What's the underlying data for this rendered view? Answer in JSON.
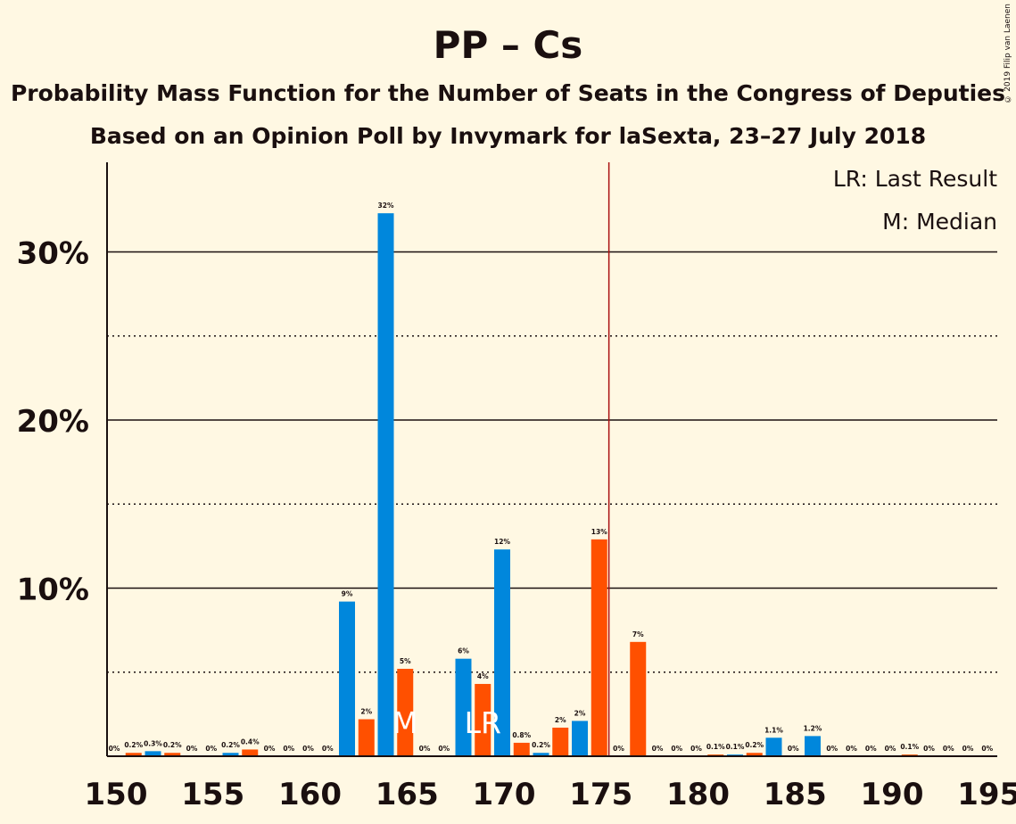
{
  "title": "PP – Cs",
  "subtitle": "Probability Mass Function for the Number of Seats in the Congress of Deputies",
  "subtitle2": "Based on an Opinion Poll by Invymark for laSexta, 23–27 July 2018",
  "copyright": "© 2019 Filip van Laenen",
  "legend": {
    "last_result": "LR: Last Result",
    "median": "M: Median"
  },
  "colors": {
    "series_blue": "#0087dc",
    "series_orange": "#ff5000",
    "majority_line": "#aa1111",
    "background": "#fff8e3"
  },
  "chart_data": {
    "type": "bar",
    "xlim": [
      150,
      195
    ],
    "ylim": [
      0,
      35
    ],
    "y_ticks": [
      {
        "value": 10,
        "label": "10%"
      },
      {
        "value": 20,
        "label": "20%"
      },
      {
        "value": 30,
        "label": "30%"
      }
    ],
    "y_dotted": [
      5,
      15,
      25
    ],
    "x_ticks": [
      {
        "value": 150,
        "label": "150"
      },
      {
        "value": 155,
        "label": "155"
      },
      {
        "value": 160,
        "label": "160"
      },
      {
        "value": 165,
        "label": "165"
      },
      {
        "value": 170,
        "label": "170"
      },
      {
        "value": 175,
        "label": "175"
      },
      {
        "value": 180,
        "label": "180"
      },
      {
        "value": 185,
        "label": "185"
      },
      {
        "value": 190,
        "label": "190"
      },
      {
        "value": 195,
        "label": "195"
      }
    ],
    "majority_line_x": 176,
    "bars": [
      {
        "x": 150,
        "value": 0,
        "label": "0%"
      },
      {
        "x": 151,
        "value": 0.2,
        "label": "0.2%"
      },
      {
        "x": 152,
        "value": 0.3,
        "label": "0.3%"
      },
      {
        "x": 153,
        "value": 0.2,
        "label": "0.2%"
      },
      {
        "x": 154,
        "value": 0,
        "label": "0%"
      },
      {
        "x": 155,
        "value": 0,
        "label": "0%"
      },
      {
        "x": 156,
        "value": 0.2,
        "label": "0.2%"
      },
      {
        "x": 157,
        "value": 0.4,
        "label": "0.4%"
      },
      {
        "x": 158,
        "value": 0,
        "label": "0%"
      },
      {
        "x": 159,
        "value": 0,
        "label": "0%"
      },
      {
        "x": 160,
        "value": 0,
        "label": "0%"
      },
      {
        "x": 161,
        "value": 0,
        "label": "0%"
      },
      {
        "x": 162,
        "value": 9.2,
        "label": "9%"
      },
      {
        "x": 163,
        "value": 2.2,
        "label": "2%"
      },
      {
        "x": 164,
        "value": 32.3,
        "label": "32%"
      },
      {
        "x": 165,
        "value": 5.2,
        "label": "5%"
      },
      {
        "x": 166,
        "value": 0,
        "label": "0%"
      },
      {
        "x": 167,
        "value": 0,
        "label": "0%"
      },
      {
        "x": 168,
        "value": 5.8,
        "label": "6%"
      },
      {
        "x": 169,
        "value": 4.3,
        "label": "4%"
      },
      {
        "x": 170,
        "value": 12.3,
        "label": "12%"
      },
      {
        "x": 171,
        "value": 0.8,
        "label": "0.8%"
      },
      {
        "x": 172,
        "value": 0.2,
        "label": "0.2%"
      },
      {
        "x": 173,
        "value": 1.7,
        "label": "2%"
      },
      {
        "x": 174,
        "value": 2.1,
        "label": "2%"
      },
      {
        "x": 175,
        "value": 12.9,
        "label": "13%"
      },
      {
        "x": 176,
        "value": 0,
        "label": "0%"
      },
      {
        "x": 177,
        "value": 6.8,
        "label": "7%"
      },
      {
        "x": 178,
        "value": 0,
        "label": "0%"
      },
      {
        "x": 179,
        "value": 0,
        "label": "0%"
      },
      {
        "x": 180,
        "value": 0,
        "label": "0%"
      },
      {
        "x": 181,
        "value": 0.1,
        "label": "0.1%"
      },
      {
        "x": 182,
        "value": 0.1,
        "label": "0.1%"
      },
      {
        "x": 183,
        "value": 0.2,
        "label": "0.2%"
      },
      {
        "x": 184,
        "value": 1.1,
        "label": "1.1%"
      },
      {
        "x": 185,
        "value": 0,
        "label": "0%"
      },
      {
        "x": 186,
        "value": 1.2,
        "label": "1.2%"
      },
      {
        "x": 187,
        "value": 0,
        "label": "0%"
      },
      {
        "x": 188,
        "value": 0,
        "label": "0%"
      },
      {
        "x": 189,
        "value": 0,
        "label": "0%"
      },
      {
        "x": 190,
        "value": 0,
        "label": "0%"
      },
      {
        "x": 191,
        "value": 0.1,
        "label": "0.1%"
      },
      {
        "x": 192,
        "value": 0,
        "label": "0%"
      },
      {
        "x": 193,
        "value": 0,
        "label": "0%"
      },
      {
        "x": 194,
        "value": 0,
        "label": "0%"
      },
      {
        "x": 195,
        "value": 0,
        "label": "0%"
      }
    ],
    "markers": [
      {
        "x": 165,
        "text": "M"
      },
      {
        "x": 169,
        "text": "LR"
      }
    ]
  }
}
